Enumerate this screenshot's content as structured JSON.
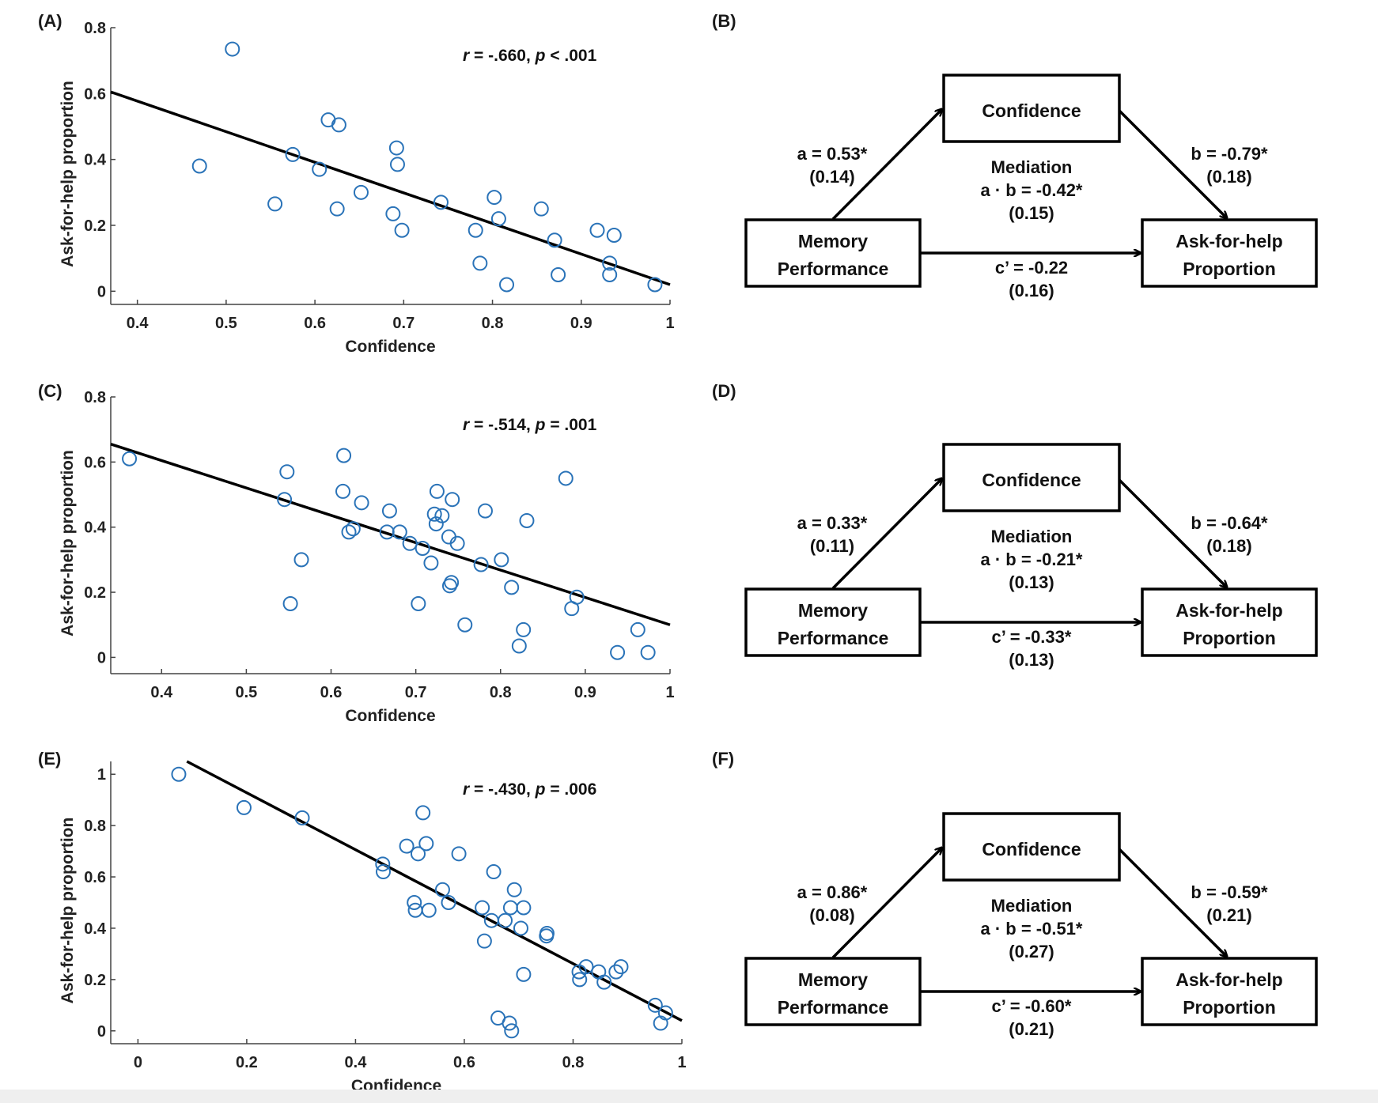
{
  "chart_data": [
    {
      "panel": "(A)",
      "type": "scatter",
      "xlabel": "Confidence",
      "ylabel": "Ask-for-help proportion",
      "xlim": [
        0.37,
        1.0
      ],
      "ylim": [
        -0.04,
        0.8
      ],
      "xticks": [
        "0.4",
        "0.5",
        "0.6",
        "0.7",
        "0.8",
        "0.9",
        "1"
      ],
      "yticks": [
        "0",
        "0.2",
        "0.4",
        "0.6",
        "0.8"
      ],
      "annotation": {
        "r": "r",
        "r_val": " = -.660, ",
        "p": "p",
        "p_val": " < .001"
      },
      "fit": {
        "x": [
          0.37,
          1.0
        ],
        "y": [
          0.605,
          0.02
        ]
      },
      "points": [
        [
          0.47,
          0.38
        ],
        [
          0.507,
          0.735
        ],
        [
          0.555,
          0.265
        ],
        [
          0.575,
          0.415
        ],
        [
          0.605,
          0.37
        ],
        [
          0.615,
          0.52
        ],
        [
          0.625,
          0.25
        ],
        [
          0.627,
          0.505
        ],
        [
          0.652,
          0.3
        ],
        [
          0.688,
          0.235
        ],
        [
          0.692,
          0.435
        ],
        [
          0.693,
          0.385
        ],
        [
          0.698,
          0.185
        ],
        [
          0.742,
          0.27
        ],
        [
          0.781,
          0.185
        ],
        [
          0.786,
          0.085
        ],
        [
          0.802,
          0.285
        ],
        [
          0.807,
          0.22
        ],
        [
          0.816,
          0.02
        ],
        [
          0.855,
          0.25
        ],
        [
          0.87,
          0.155
        ],
        [
          0.874,
          0.05
        ],
        [
          0.918,
          0.185
        ],
        [
          0.932,
          0.085
        ],
        [
          0.932,
          0.05
        ],
        [
          0.937,
          0.17
        ],
        [
          0.983,
          0.02
        ]
      ]
    },
    {
      "panel": "(C)",
      "type": "scatter",
      "xlabel": "Confidence",
      "ylabel": "Ask-for-help proportion",
      "xlim": [
        0.34,
        1.0
      ],
      "ylim": [
        -0.05,
        0.8
      ],
      "xticks": [
        "0.4",
        "0.5",
        "0.6",
        "0.7",
        "0.8",
        "0.9",
        "1"
      ],
      "yticks": [
        "0",
        "0.2",
        "0.4",
        "0.6",
        "0.8"
      ],
      "annotation": {
        "r": "r",
        "r_val": " = -.514, ",
        "p": "p",
        "p_val": " = .001"
      },
      "fit": {
        "x": [
          0.34,
          1.0
        ],
        "y": [
          0.655,
          0.1
        ]
      },
      "points": [
        [
          0.362,
          0.61
        ],
        [
          0.545,
          0.485
        ],
        [
          0.548,
          0.57
        ],
        [
          0.552,
          0.165
        ],
        [
          0.565,
          0.3
        ],
        [
          0.614,
          0.51
        ],
        [
          0.615,
          0.62
        ],
        [
          0.621,
          0.385
        ],
        [
          0.626,
          0.395
        ],
        [
          0.636,
          0.475
        ],
        [
          0.666,
          0.385
        ],
        [
          0.669,
          0.45
        ],
        [
          0.681,
          0.385
        ],
        [
          0.693,
          0.35
        ],
        [
          0.703,
          0.165
        ],
        [
          0.708,
          0.335
        ],
        [
          0.718,
          0.29
        ],
        [
          0.722,
          0.44
        ],
        [
          0.724,
          0.41
        ],
        [
          0.725,
          0.51
        ],
        [
          0.731,
          0.435
        ],
        [
          0.739,
          0.37
        ],
        [
          0.74,
          0.22
        ],
        [
          0.742,
          0.23
        ],
        [
          0.743,
          0.485
        ],
        [
          0.749,
          0.35
        ],
        [
          0.758,
          0.1
        ],
        [
          0.777,
          0.285
        ],
        [
          0.782,
          0.45
        ],
        [
          0.801,
          0.3
        ],
        [
          0.813,
          0.215
        ],
        [
          0.822,
          0.035
        ],
        [
          0.827,
          0.085
        ],
        [
          0.831,
          0.42
        ],
        [
          0.877,
          0.55
        ],
        [
          0.884,
          0.15
        ],
        [
          0.89,
          0.185
        ],
        [
          0.938,
          0.015
        ],
        [
          0.962,
          0.085
        ],
        [
          0.974,
          0.015
        ]
      ]
    },
    {
      "panel": "(E)",
      "type": "scatter",
      "xlabel": "Confidence",
      "ylabel": "Ask-for-help proportion",
      "xlim": [
        -0.05,
        1.0
      ],
      "ylim": [
        -0.05,
        1.05
      ],
      "xticks": [
        "0",
        "0.2",
        "0.4",
        "0.6",
        "0.8",
        "1"
      ],
      "yticks": [
        "0",
        "0.2",
        "0.4",
        "0.6",
        "0.8",
        "1"
      ],
      "annotation": {
        "r": "r",
        "r_val": " = -.430, ",
        "p": "p",
        "p_val": " = .006"
      },
      "fit": {
        "x": [
          0.09,
          1.0
        ],
        "y": [
          1.05,
          0.04
        ]
      },
      "points": [
        [
          0.075,
          1.0
        ],
        [
          0.195,
          0.87
        ],
        [
          0.302,
          0.83
        ],
        [
          0.45,
          0.65
        ],
        [
          0.451,
          0.62
        ],
        [
          0.494,
          0.72
        ],
        [
          0.508,
          0.5
        ],
        [
          0.51,
          0.47
        ],
        [
          0.515,
          0.69
        ],
        [
          0.524,
          0.85
        ],
        [
          0.53,
          0.73
        ],
        [
          0.535,
          0.47
        ],
        [
          0.56,
          0.55
        ],
        [
          0.571,
          0.5
        ],
        [
          0.59,
          0.69
        ],
        [
          0.633,
          0.48
        ],
        [
          0.637,
          0.35
        ],
        [
          0.65,
          0.43
        ],
        [
          0.654,
          0.62
        ],
        [
          0.662,
          0.05
        ],
        [
          0.675,
          0.43
        ],
        [
          0.683,
          0.03
        ],
        [
          0.685,
          0.48
        ],
        [
          0.687,
          0.0
        ],
        [
          0.692,
          0.55
        ],
        [
          0.704,
          0.4
        ],
        [
          0.709,
          0.22
        ],
        [
          0.709,
          0.48
        ],
        [
          0.751,
          0.37
        ],
        [
          0.752,
          0.38
        ],
        [
          0.811,
          0.23
        ],
        [
          0.812,
          0.2
        ],
        [
          0.824,
          0.25
        ],
        [
          0.847,
          0.23
        ],
        [
          0.857,
          0.19
        ],
        [
          0.879,
          0.23
        ],
        [
          0.888,
          0.25
        ],
        [
          0.951,
          0.1
        ],
        [
          0.961,
          0.03
        ],
        [
          0.97,
          0.07
        ]
      ]
    }
  ],
  "diagrams": [
    {
      "panel": "(B)",
      "mediator": "Confidence",
      "predictor_line1": "Memory",
      "predictor_line2": "Performance",
      "outcome_line1": "Ask-for-help",
      "outcome_line2": "Proportion",
      "a_coef": "a = 0.53*",
      "a_se": "(0.14)",
      "b_coef": "b = -0.79*",
      "b_se": "(0.18)",
      "mediation_title": "Mediation",
      "ab_coef": "a · b = -0.42*",
      "ab_se": "(0.15)",
      "c_coef": "c’ = -0.22",
      "c_se": "(0.16)"
    },
    {
      "panel": "(D)",
      "mediator": "Confidence",
      "predictor_line1": "Memory",
      "predictor_line2": "Performance",
      "outcome_line1": "Ask-for-help",
      "outcome_line2": "Proportion",
      "a_coef": "a = 0.33*",
      "a_se": "(0.11)",
      "b_coef": "b = -0.64*",
      "b_se": "(0.18)",
      "mediation_title": "Mediation",
      "ab_coef": "a · b = -0.21*",
      "ab_se": "(0.13)",
      "c_coef": "c’ = -0.33*",
      "c_se": "(0.13)"
    },
    {
      "panel": "(F)",
      "mediator": "Confidence",
      "predictor_line1": "Memory",
      "predictor_line2": "Performance",
      "outcome_line1": "Ask-for-help",
      "outcome_line2": "Proportion",
      "a_coef": "a = 0.86*",
      "a_se": "(0.08)",
      "b_coef": "b = -0.59*",
      "b_se": "(0.21)",
      "mediation_title": "Mediation",
      "ab_coef": "a · b = -0.51*",
      "ab_se": "(0.27)",
      "c_coef": "c’ = -0.60*",
      "c_se": "(0.21)"
    }
  ]
}
